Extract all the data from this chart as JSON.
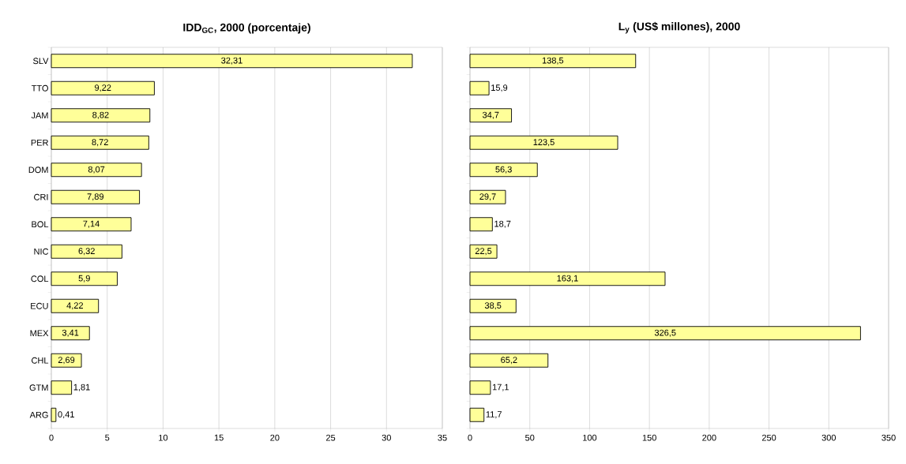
{
  "chart_data": [
    {
      "type": "bar",
      "orientation": "horizontal",
      "title": "IDD$_{GC}$, 2000 (porcentaje)",
      "categories": [
        "SLV",
        "TTO",
        "JAM",
        "PER",
        "DOM",
        "CRI",
        "BOL",
        "NIC",
        "COL",
        "ECU",
        "MEX",
        "CHL",
        "GTM",
        "ARG"
      ],
      "values": [
        32.31,
        9.22,
        8.82,
        8.72,
        8.07,
        7.89,
        7.14,
        6.32,
        5.9,
        4.22,
        3.41,
        2.69,
        1.81,
        0.41
      ],
      "value_labels": [
        "32,31",
        "9,22",
        "8,82",
        "8,72",
        "8,07",
        "7,89",
        "7,14",
        "6,32",
        "5,9",
        "4,22",
        "3,41",
        "2,69",
        "1,81",
        "0,41"
      ],
      "color": "#ffff99",
      "xlim": [
        0,
        35
      ],
      "xticks": [
        0,
        5,
        10,
        15,
        20,
        25,
        30,
        35
      ],
      "grid": "x"
    },
    {
      "type": "bar",
      "orientation": "horizontal",
      "title": "L$_{y}$ (US$  millones), 2000",
      "categories": [
        null,
        null,
        null,
        null,
        null,
        null,
        null,
        null,
        null,
        null,
        null,
        null,
        null,
        null
      ],
      "values": [
        138.5,
        15.9,
        34.7,
        123.5,
        56.3,
        29.7,
        18.7,
        22.5,
        163.1,
        38.5,
        326.5,
        65.2,
        17.1,
        11.7
      ],
      "value_labels": [
        "138,5",
        "15,9",
        "34,7",
        "123,5",
        "56,3",
        "29,7",
        "18,7",
        "22,5",
        "163,1",
        "38,5",
        "326,5",
        "65,2",
        "17,1",
        "11,7"
      ],
      "color": "#ffff99",
      "xlim": [
        0,
        350
      ],
      "xticks": [
        0,
        50,
        100,
        150,
        200,
        250,
        300,
        350
      ],
      "grid": "x",
      "tick_labels": "x"
    }
  ]
}
